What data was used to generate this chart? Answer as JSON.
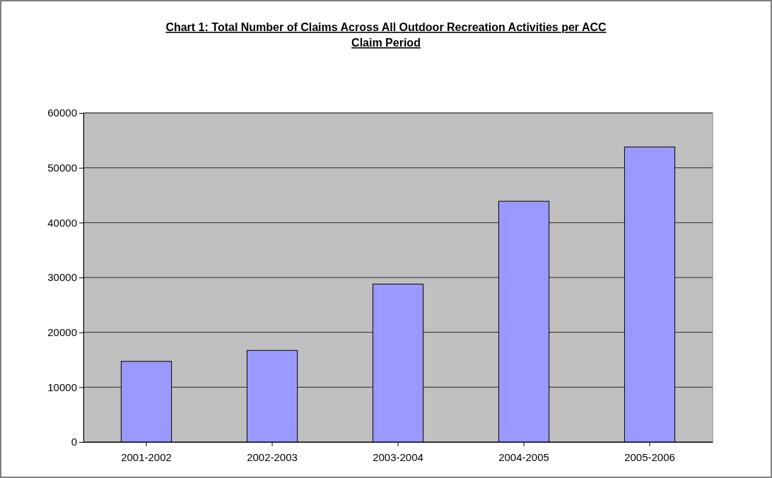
{
  "chart_data": {
    "type": "bar",
    "title": "Chart 1: Total Number of Claims Across All Outdoor Recreation Activities per ACC Claim Period",
    "categories": [
      "2001-2002",
      "2002-2003",
      "2003-2004",
      "2004-2005",
      "2005-2006"
    ],
    "values": [
      14700,
      16700,
      28800,
      43900,
      53800
    ],
    "color": "#9999ff",
    "ylim": [
      0,
      60000
    ],
    "yticks": [
      0,
      10000,
      20000,
      30000,
      40000,
      50000,
      60000
    ],
    "grid": "y"
  }
}
